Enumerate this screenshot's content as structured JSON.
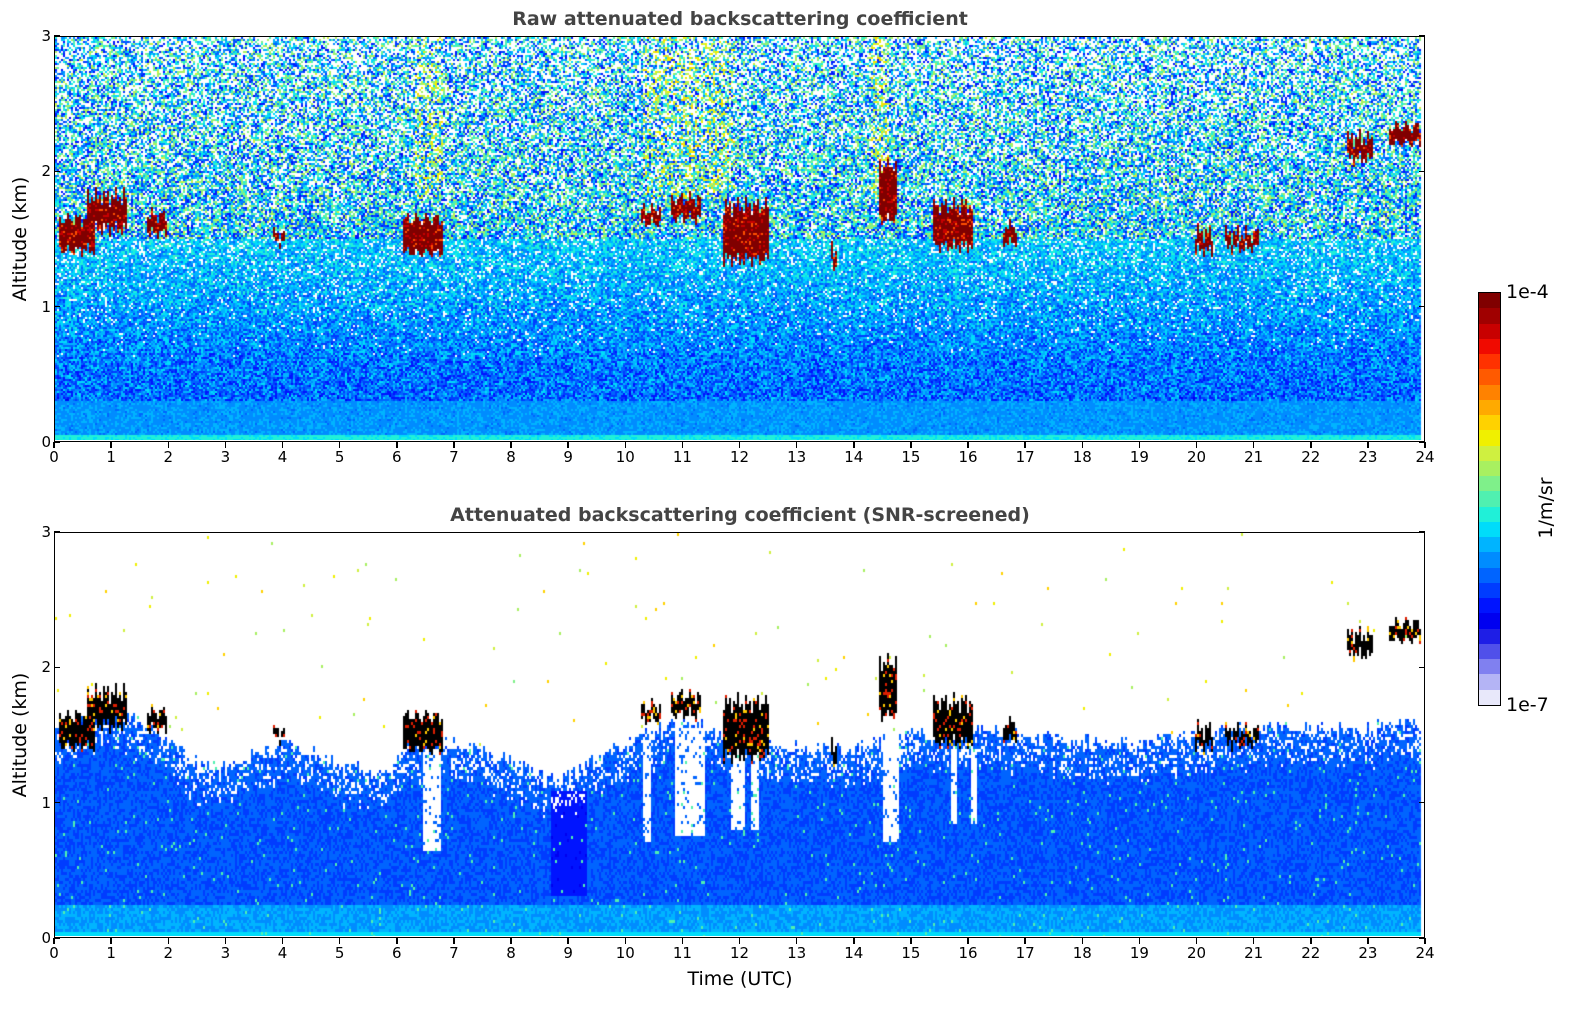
{
  "chart_data": [
    {
      "type": "heatmap",
      "title": "Raw attenuated backscattering coefficient",
      "xlabel": "",
      "ylabel": "Altitude (km)",
      "xlim": [
        0,
        24
      ],
      "ylim": [
        0,
        3
      ],
      "xticks": [
        "0",
        "1",
        "2",
        "3",
        "4",
        "5",
        "6",
        "7",
        "8",
        "9",
        "10",
        "11",
        "12",
        "13",
        "14",
        "15",
        "16",
        "17",
        "18",
        "19",
        "20",
        "21",
        "22",
        "23",
        "24"
      ],
      "yticks": [
        "0",
        "1",
        "2",
        "3"
      ],
      "screened": false,
      "clouds": [
        {
          "t0": 0.05,
          "t1": 0.7,
          "base": 1.42,
          "top": 1.65
        },
        {
          "t0": 0.55,
          "t1": 1.25,
          "base": 1.58,
          "top": 1.82
        },
        {
          "t0": 1.6,
          "t1": 1.95,
          "base": 1.55,
          "top": 1.68
        },
        {
          "t0": 3.8,
          "t1": 4.0,
          "base": 1.48,
          "top": 1.54
        },
        {
          "t0": 6.1,
          "t1": 6.8,
          "base": 1.4,
          "top": 1.65
        },
        {
          "t0": 10.25,
          "t1": 10.6,
          "base": 1.62,
          "top": 1.72
        },
        {
          "t0": 10.8,
          "t1": 11.3,
          "base": 1.66,
          "top": 1.8
        },
        {
          "t0": 11.7,
          "t1": 12.5,
          "base": 1.35,
          "top": 1.75
        },
        {
          "t0": 13.6,
          "t1": 13.7,
          "base": 1.3,
          "top": 1.42
        },
        {
          "t0": 14.45,
          "t1": 14.75,
          "base": 1.65,
          "top": 2.05
        },
        {
          "t0": 15.4,
          "t1": 16.1,
          "base": 1.45,
          "top": 1.75
        },
        {
          "t0": 16.6,
          "t1": 16.85,
          "base": 1.48,
          "top": 1.6
        },
        {
          "t0": 20.0,
          "t1": 20.3,
          "base": 1.42,
          "top": 1.55
        },
        {
          "t0": 20.5,
          "t1": 21.1,
          "base": 1.44,
          "top": 1.54
        },
        {
          "t0": 22.65,
          "t1": 23.1,
          "base": 2.1,
          "top": 2.25
        },
        {
          "t0": 23.4,
          "t1": 23.95,
          "base": 2.22,
          "top": 2.34
        }
      ]
    },
    {
      "type": "heatmap",
      "title": "Attenuated backscattering coefficient (SNR-screened)",
      "xlabel": "Time (UTC)",
      "ylabel": "Altitude (km)",
      "xlim": [
        0,
        24
      ],
      "ylim": [
        0,
        3
      ],
      "xticks": [
        "0",
        "1",
        "2",
        "3",
        "4",
        "5",
        "6",
        "7",
        "8",
        "9",
        "10",
        "11",
        "12",
        "13",
        "14",
        "15",
        "16",
        "17",
        "18",
        "19",
        "20",
        "21",
        "22",
        "23",
        "24"
      ],
      "yticks": [
        "0",
        "1",
        "2",
        "3"
      ],
      "screened": true,
      "boundary_layer_top_km": [
        {
          "t": 0,
          "h": 1.55
        },
        {
          "t": 1,
          "h": 1.7
        },
        {
          "t": 2,
          "h": 1.45
        },
        {
          "t": 2.5,
          "h": 1.28
        },
        {
          "t": 3,
          "h": 1.25
        },
        {
          "t": 4,
          "h": 1.45
        },
        {
          "t": 5,
          "h": 1.28
        },
        {
          "t": 5.8,
          "h": 1.2
        },
        {
          "t": 6.2,
          "h": 1.45
        },
        {
          "t": 7,
          "h": 1.45
        },
        {
          "t": 8,
          "h": 1.3
        },
        {
          "t": 8.8,
          "h": 1.15
        },
        {
          "t": 9.4,
          "h": 1.3
        },
        {
          "t": 10.2,
          "h": 1.5
        },
        {
          "t": 11,
          "h": 1.6
        },
        {
          "t": 12,
          "h": 1.5
        },
        {
          "t": 13,
          "h": 1.4
        },
        {
          "t": 14,
          "h": 1.4
        },
        {
          "t": 15,
          "h": 1.5
        },
        {
          "t": 16,
          "h": 1.55
        },
        {
          "t": 17,
          "h": 1.5
        },
        {
          "t": 18,
          "h": 1.45
        },
        {
          "t": 19,
          "h": 1.45
        },
        {
          "t": 20,
          "h": 1.5
        },
        {
          "t": 21,
          "h": 1.55
        },
        {
          "t": 22,
          "h": 1.55
        },
        {
          "t": 23,
          "h": 1.55
        },
        {
          "t": 24,
          "h": 1.6
        }
      ],
      "gaps": [
        {
          "t0": 6.45,
          "t1": 6.75,
          "low": 0.65,
          "high": 1.4
        },
        {
          "t0": 10.3,
          "t1": 10.45,
          "low": 0.7,
          "high": 1.5
        },
        {
          "t0": 10.85,
          "t1": 11.4,
          "low": 0.75,
          "high": 1.55
        },
        {
          "t0": 11.85,
          "t1": 12.1,
          "low": 0.8,
          "high": 1.45
        },
        {
          "t0": 12.2,
          "t1": 12.35,
          "low": 0.8,
          "high": 1.4
        },
        {
          "t0": 14.5,
          "t1": 14.8,
          "low": 0.7,
          "high": 1.6
        },
        {
          "t0": 15.7,
          "t1": 15.8,
          "low": 0.85,
          "high": 1.4
        },
        {
          "t0": 16.05,
          "t1": 16.15,
          "low": 0.85,
          "high": 1.4
        }
      ]
    }
  ],
  "colorbar": {
    "label": "1/m/sr",
    "max_label": "1e-4",
    "min_label": "1e-7",
    "scale": "log",
    "range": [
      1e-07,
      0.0001
    ],
    "colors": [
      "#e8e8fa",
      "#b4b4f5",
      "#8080f0",
      "#5050ea",
      "#1e1ee6",
      "#0000f0",
      "#0014ff",
      "#003cff",
      "#0064ff",
      "#008cff",
      "#00b4ff",
      "#00dcfa",
      "#20f0d8",
      "#50f0b0",
      "#7ff08a",
      "#a8f060",
      "#cff040",
      "#f0f000",
      "#ffd200",
      "#ffaa00",
      "#ff8200",
      "#ff5a00",
      "#ff3200",
      "#f00a00",
      "#c80000",
      "#a00000",
      "#800000"
    ]
  }
}
